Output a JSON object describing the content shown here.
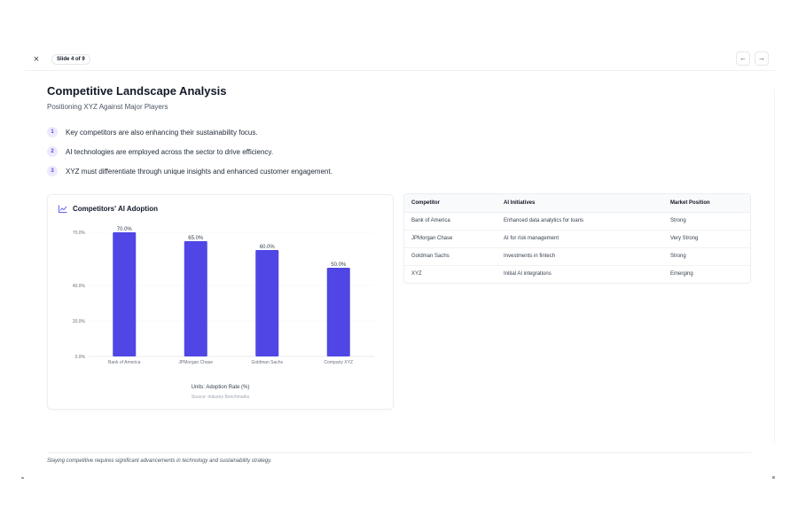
{
  "topbar": {
    "close_icon": "×",
    "slide_indicator": "Slide 4 of 9",
    "prev_icon": "←",
    "next_icon": "→"
  },
  "slide": {
    "title": "Competitive Landscape Analysis",
    "subtitle": "Positioning XYZ Against Major Players",
    "points": [
      {
        "num": "1",
        "text": "Key competitors are also enhancing their sustainability focus."
      },
      {
        "num": "2",
        "text": "AI technologies are employed across the sector to drive efficiency."
      },
      {
        "num": "3",
        "text": "XYZ must differentiate through unique insights and enhanced customer engagement."
      }
    ],
    "chart_card": {
      "icon": "chart-line-icon",
      "title": "Competitors' AI Adoption",
      "units": "Units: Adoption Rate (%)",
      "source": "Source: Industry Benchmarks"
    },
    "table": {
      "headers": [
        "Competitor",
        "AI Initiatives",
        "Market Position"
      ],
      "rows": [
        [
          "Bank of America",
          "Enhanced data analytics for loans",
          "Strong"
        ],
        [
          "JPMorgan Chase",
          "AI for risk management",
          "Very Strong"
        ],
        [
          "Goldman Sachs",
          "Investments in fintech",
          "Strong"
        ],
        [
          "XYZ",
          "Initial AI integrations",
          "Emerging"
        ]
      ]
    },
    "footer": "Staying competitive requires significant advancements in technology and sustainability strategy."
  },
  "colors": {
    "bar": "#4f46e5",
    "accent": "#6366f1",
    "badge_bg": "#ede9fe"
  },
  "chart_data": {
    "type": "bar",
    "categories": [
      "Bank of America",
      "JPMorgan Chase",
      "Goldman Sachs",
      "Company XYZ"
    ],
    "values": [
      70,
      65,
      60,
      50
    ],
    "data_labels": [
      "70.0%",
      "65.0%",
      "60.0%",
      "50.0%"
    ],
    "y_ticks": [
      0,
      20,
      40,
      70
    ],
    "y_tick_labels": [
      "0.0%",
      "20.0%",
      "40.0%",
      "70.0%"
    ],
    "ylim": [
      0,
      70
    ],
    "grid": true,
    "legend": "none"
  }
}
